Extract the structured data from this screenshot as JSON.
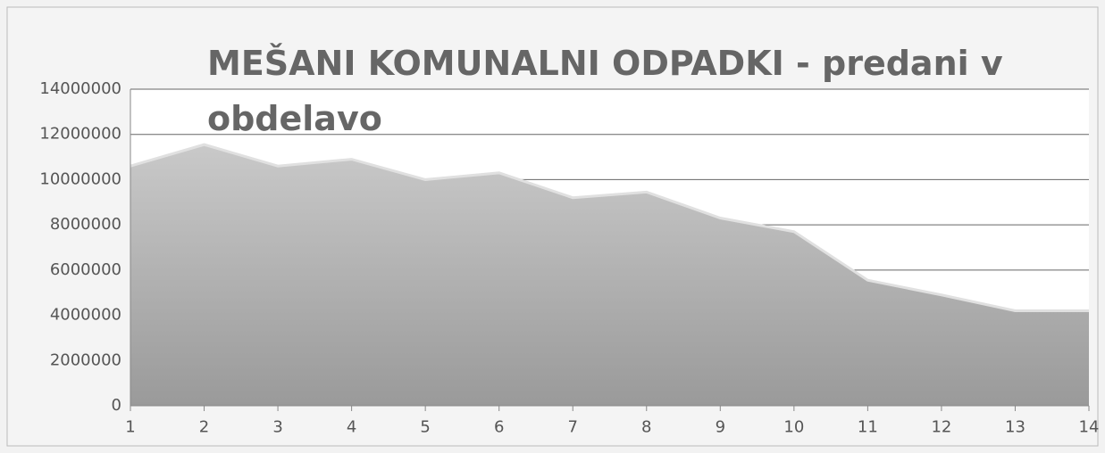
{
  "chart_data": {
    "type": "area",
    "title": "MEŠANI KOMUNALNI ODPADKI - predani v obdelavo",
    "x": [
      1,
      2,
      3,
      4,
      5,
      6,
      7,
      8,
      9,
      10,
      11,
      12,
      13,
      14
    ],
    "values": [
      10600000,
      11550000,
      10600000,
      10900000,
      10000000,
      10300000,
      9200000,
      9450000,
      8300000,
      7700000,
      5550000,
      4900000,
      4200000,
      4200000
    ],
    "color": "#a8a8a8",
    "xlim": [
      1,
      14
    ],
    "xticks": [
      1,
      2,
      3,
      4,
      5,
      6,
      7,
      8,
      9,
      10,
      11,
      12,
      13,
      14
    ],
    "ylim": [
      0,
      14000000
    ],
    "yticks": [
      0,
      2000000,
      4000000,
      6000000,
      8000000,
      10000000,
      12000000,
      14000000
    ],
    "grid": true
  }
}
